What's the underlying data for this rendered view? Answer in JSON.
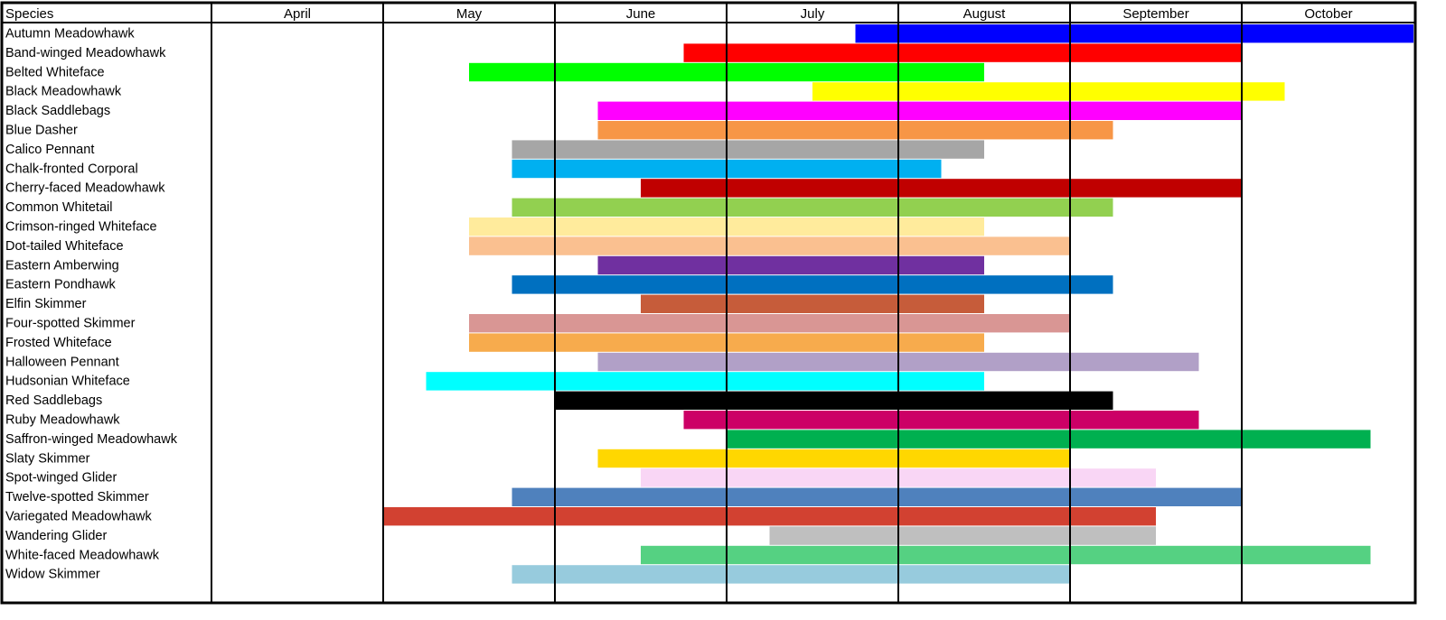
{
  "chart_data": {
    "type": "bar",
    "title": "",
    "xlabel": "",
    "ylabel": "",
    "header_label": "Species",
    "months": [
      "April",
      "May",
      "June",
      "July",
      "August",
      "September",
      "October"
    ],
    "x_unit_note": "start/end values are month indices from the start of April (0 = April 1, 1 = May 1, ...)",
    "grid": true,
    "species": [
      {
        "name": "Autumn Meadowhawk",
        "start": 3.75,
        "end": 7.0,
        "color": "#0000ff"
      },
      {
        "name": "Band-winged Meadowhawk",
        "start": 2.75,
        "end": 6.0,
        "color": "#ff0000"
      },
      {
        "name": "Belted Whiteface",
        "start": 1.5,
        "end": 4.5,
        "color": "#00ff00"
      },
      {
        "name": "Black Meadowhawk",
        "start": 3.5,
        "end": 6.25,
        "color": "#ffff00"
      },
      {
        "name": "Black Saddlebags",
        "start": 2.25,
        "end": 6.0,
        "color": "#ff00ff"
      },
      {
        "name": "Blue Dasher",
        "start": 2.25,
        "end": 5.25,
        "color": "#f79646"
      },
      {
        "name": "Calico Pennant",
        "start": 1.75,
        "end": 4.5,
        "color": "#a6a6a6"
      },
      {
        "name": "Chalk-fronted Corporal",
        "start": 1.75,
        "end": 4.25,
        "color": "#00b0f0"
      },
      {
        "name": "Cherry-faced Meadowhawk",
        "start": 2.5,
        "end": 6.0,
        "color": "#c00000"
      },
      {
        "name": "Common Whitetail",
        "start": 1.75,
        "end": 5.25,
        "color": "#92d050"
      },
      {
        "name": "Crimson-ringed Whiteface",
        "start": 1.5,
        "end": 4.5,
        "color": "#ffeb9c"
      },
      {
        "name": "Dot-tailed Whiteface",
        "start": 1.5,
        "end": 5.0,
        "color": "#fac090"
      },
      {
        "name": "Eastern Amberwing",
        "start": 2.25,
        "end": 4.5,
        "color": "#7030a0"
      },
      {
        "name": "Eastern Pondhawk",
        "start": 1.75,
        "end": 5.25,
        "color": "#0070c0"
      },
      {
        "name": "Elfin Skimmer",
        "start": 2.5,
        "end": 4.5,
        "color": "#c65c3a"
      },
      {
        "name": "Four-spotted Skimmer",
        "start": 1.5,
        "end": 5.0,
        "color": "#d99694"
      },
      {
        "name": "Frosted Whiteface",
        "start": 1.5,
        "end": 4.5,
        "color": "#f7ab4d"
      },
      {
        "name": "Halloween Pennant",
        "start": 2.25,
        "end": 5.75,
        "color": "#b1a0c7"
      },
      {
        "name": "Hudsonian Whiteface",
        "start": 1.25,
        "end": 4.5,
        "color": "#00ffff"
      },
      {
        "name": "Red Saddlebags",
        "start": 2.0,
        "end": 5.25,
        "color": "#000000"
      },
      {
        "name": "Ruby Meadowhawk",
        "start": 2.75,
        "end": 5.75,
        "color": "#cc0066"
      },
      {
        "name": "Saffron-winged Meadowhawk",
        "start": 3.0,
        "end": 6.75,
        "color": "#00b050"
      },
      {
        "name": "Slaty Skimmer",
        "start": 2.25,
        "end": 5.0,
        "color": "#ffd700"
      },
      {
        "name": "Spot-winged Glider",
        "start": 2.5,
        "end": 5.5,
        "color": "#f9d6f5"
      },
      {
        "name": "Twelve-spotted Skimmer",
        "start": 1.75,
        "end": 6.0,
        "color": "#4f81bd"
      },
      {
        "name": "Variegated Meadowhawk",
        "start": 1.0,
        "end": 5.5,
        "color": "#d24131"
      },
      {
        "name": "Wandering Glider",
        "start": 3.25,
        "end": 5.5,
        "color": "#bfbfbf"
      },
      {
        "name": "White-faced Meadowhawk",
        "start": 2.5,
        "end": 6.75,
        "color": "#55d182"
      },
      {
        "name": "Widow Skimmer",
        "start": 1.75,
        "end": 5.0,
        "color": "#97cbdd"
      }
    ]
  }
}
